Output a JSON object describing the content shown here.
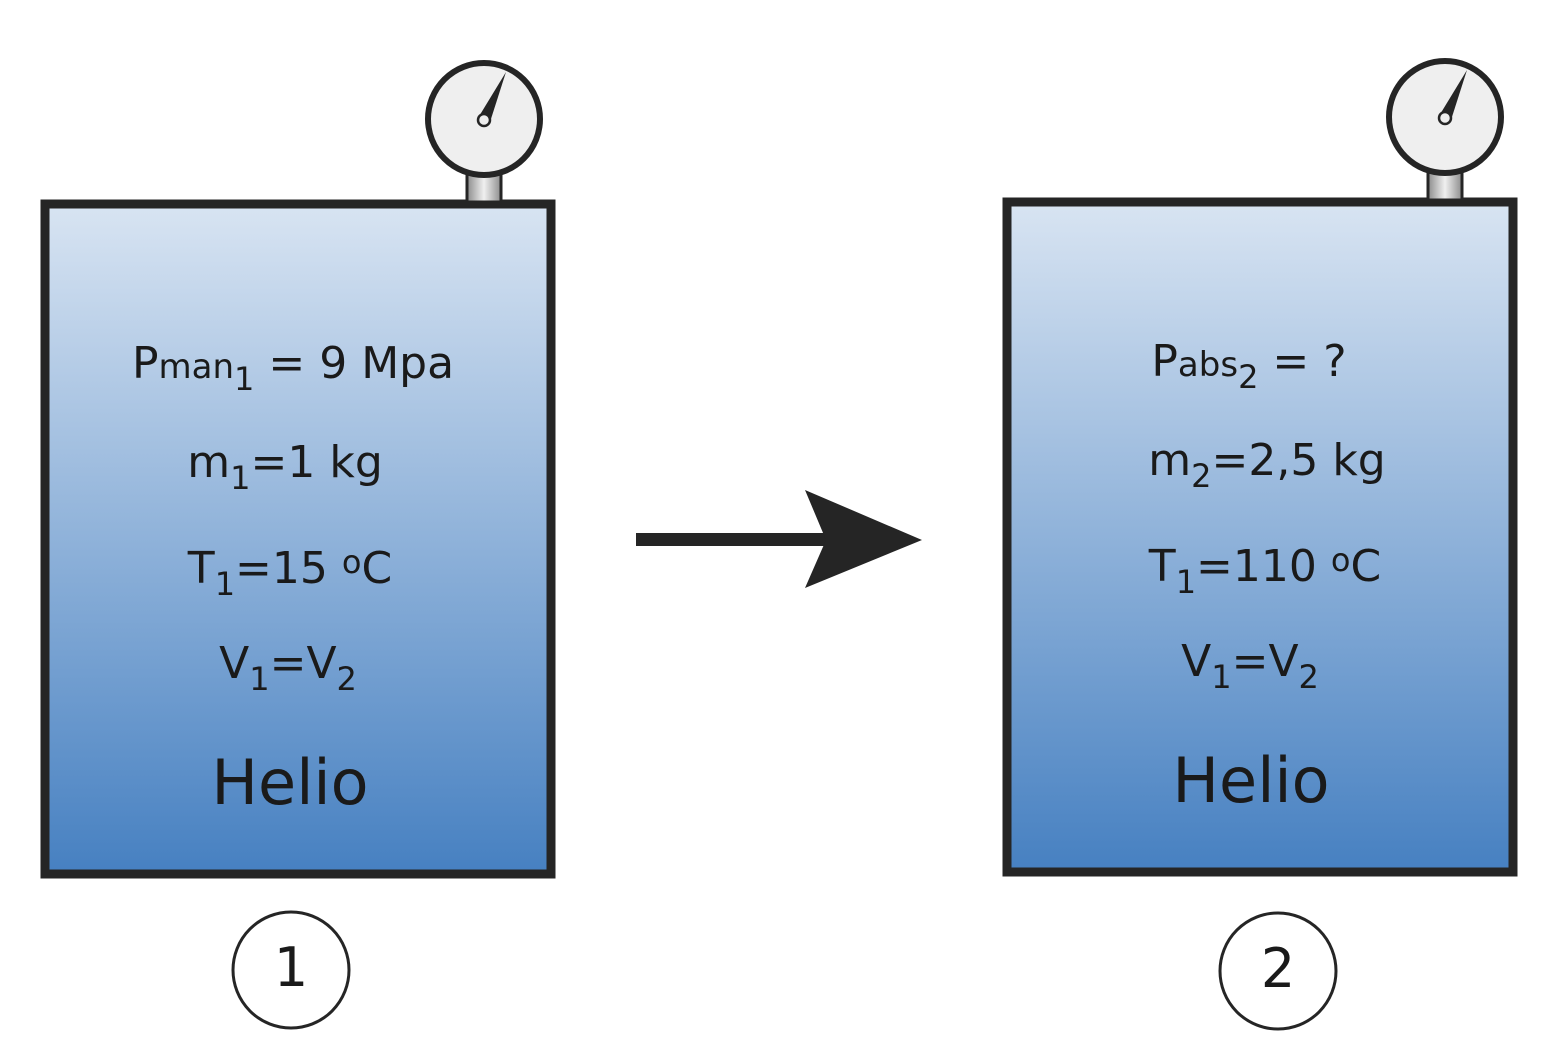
{
  "tank1": {
    "pressure": {
      "symbol": "P",
      "label": "man",
      "sub": "1",
      "rest": " = 9 Mpa"
    },
    "mass": {
      "symbol": "m",
      "sub": "1",
      "rest": "=1 kg"
    },
    "temperature": {
      "symbol": "T",
      "sub": "1",
      "value": "=15 ",
      "degree": "o",
      "unit": "C"
    },
    "volume": {
      "v1": "V",
      "sub1": "1",
      "eq": "=V",
      "sub2": "2"
    },
    "gas": "Helio",
    "state_number": "1"
  },
  "tank2": {
    "pressure": {
      "symbol": "P",
      "label": "abs",
      "sub": "2",
      "rest": " = ?"
    },
    "mass": {
      "symbol": "m",
      "sub": "2",
      "rest": "=2,5 kg"
    },
    "temperature": {
      "symbol": "T",
      "sub": "1",
      "value": "=110 ",
      "degree": "o",
      "unit": "C"
    },
    "volume": {
      "v1": "V",
      "sub1": "1",
      "eq": "=V",
      "sub2": "2"
    },
    "gas": "Helio",
    "state_number": "2"
  },
  "colors": {
    "tank_top": "#d8e4f2",
    "tank_bottom": "#4680c1",
    "outline": "#252525",
    "gauge_face": "#efefef"
  }
}
